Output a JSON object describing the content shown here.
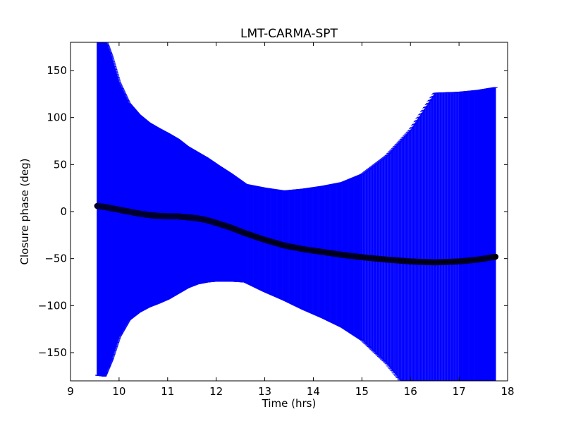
{
  "chart_data": {
    "type": "scatter",
    "title": "LMT-CARMA-SPT",
    "xlabel": "Time (hrs)",
    "ylabel": "Closure phase (deg)",
    "xlim": [
      9,
      18
    ],
    "ylim": [
      -180,
      180
    ],
    "xticks": [
      9,
      10,
      11,
      12,
      13,
      14,
      15,
      16,
      17,
      18
    ],
    "yticks": [
      150,
      100,
      50,
      0,
      -50,
      -100,
      -150
    ],
    "grid": false,
    "legend": "none",
    "colors": {
      "errorbar": "#0000ff",
      "marker_fill": "#000000",
      "marker_edge": "#000033",
      "axes": "#000000"
    },
    "series": [
      {
        "x": [
          9.55,
          9.7,
          9.85,
          10.0,
          10.2,
          10.4,
          10.6,
          10.8,
          11.0,
          11.2,
          11.4,
          11.6,
          11.8,
          12.0,
          12.3,
          12.6,
          13.0,
          13.4,
          13.8,
          14.2,
          14.6,
          15.0,
          15.5,
          16.0,
          16.5,
          17.0,
          17.4,
          17.75
        ],
        "y": [
          6,
          5,
          3.5,
          2,
          0,
          -2,
          -3.5,
          -4.5,
          -5,
          -5,
          -6,
          -7,
          -9,
          -12,
          -17,
          -23,
          -30,
          -36,
          -40,
          -43,
          -46,
          -48.5,
          -51,
          -53,
          -54,
          -53,
          -51,
          -48
        ],
        "err": [
          180,
          180,
          160,
          135,
          115,
          105,
          98,
          93,
          88,
          82,
          75,
          70,
          66,
          62,
          57,
          52,
          55,
          58,
          64,
          70,
          77,
          88,
          110,
          140,
          180,
          180,
          180,
          180
        ]
      }
    ]
  }
}
